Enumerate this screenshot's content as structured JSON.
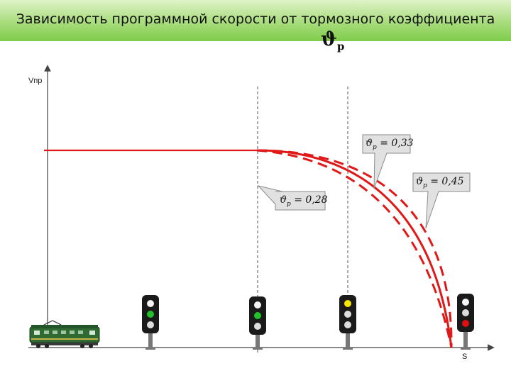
{
  "title": "Зависимость программной скорости от тормозного коэффициента",
  "title_symbol": {
    "main": "ϑ",
    "sub": "p"
  },
  "axes": {
    "y_label": "Vпр",
    "x_label": "S"
  },
  "callouts": [
    {
      "symbol": "ϑ",
      "sub": "p",
      "value": " = 0,33"
    },
    {
      "symbol": "ϑ",
      "sub": "p",
      "value": " = 0,45"
    },
    {
      "symbol": "ϑ",
      "sub": "p",
      "value": " = 0,28"
    }
  ],
  "signals": [
    {
      "lamps": [
        "#f4f4f4",
        "#22c02a",
        "#dddddd"
      ]
    },
    {
      "lamps": [
        "#f4f4f4",
        "#22c02a",
        "#dddddd"
      ]
    },
    {
      "lamps": [
        "#f5e700",
        "#dddddd",
        "#dddddd"
      ]
    },
    {
      "lamps": [
        "#f4f4f4",
        "#dddddd",
        "#e01010"
      ]
    }
  ],
  "colors": {
    "curve": "#e01818",
    "callout_bg": "#e1e1e1",
    "signal_body": "#1a1a1a",
    "title_bar": "#a8dc7c"
  }
}
